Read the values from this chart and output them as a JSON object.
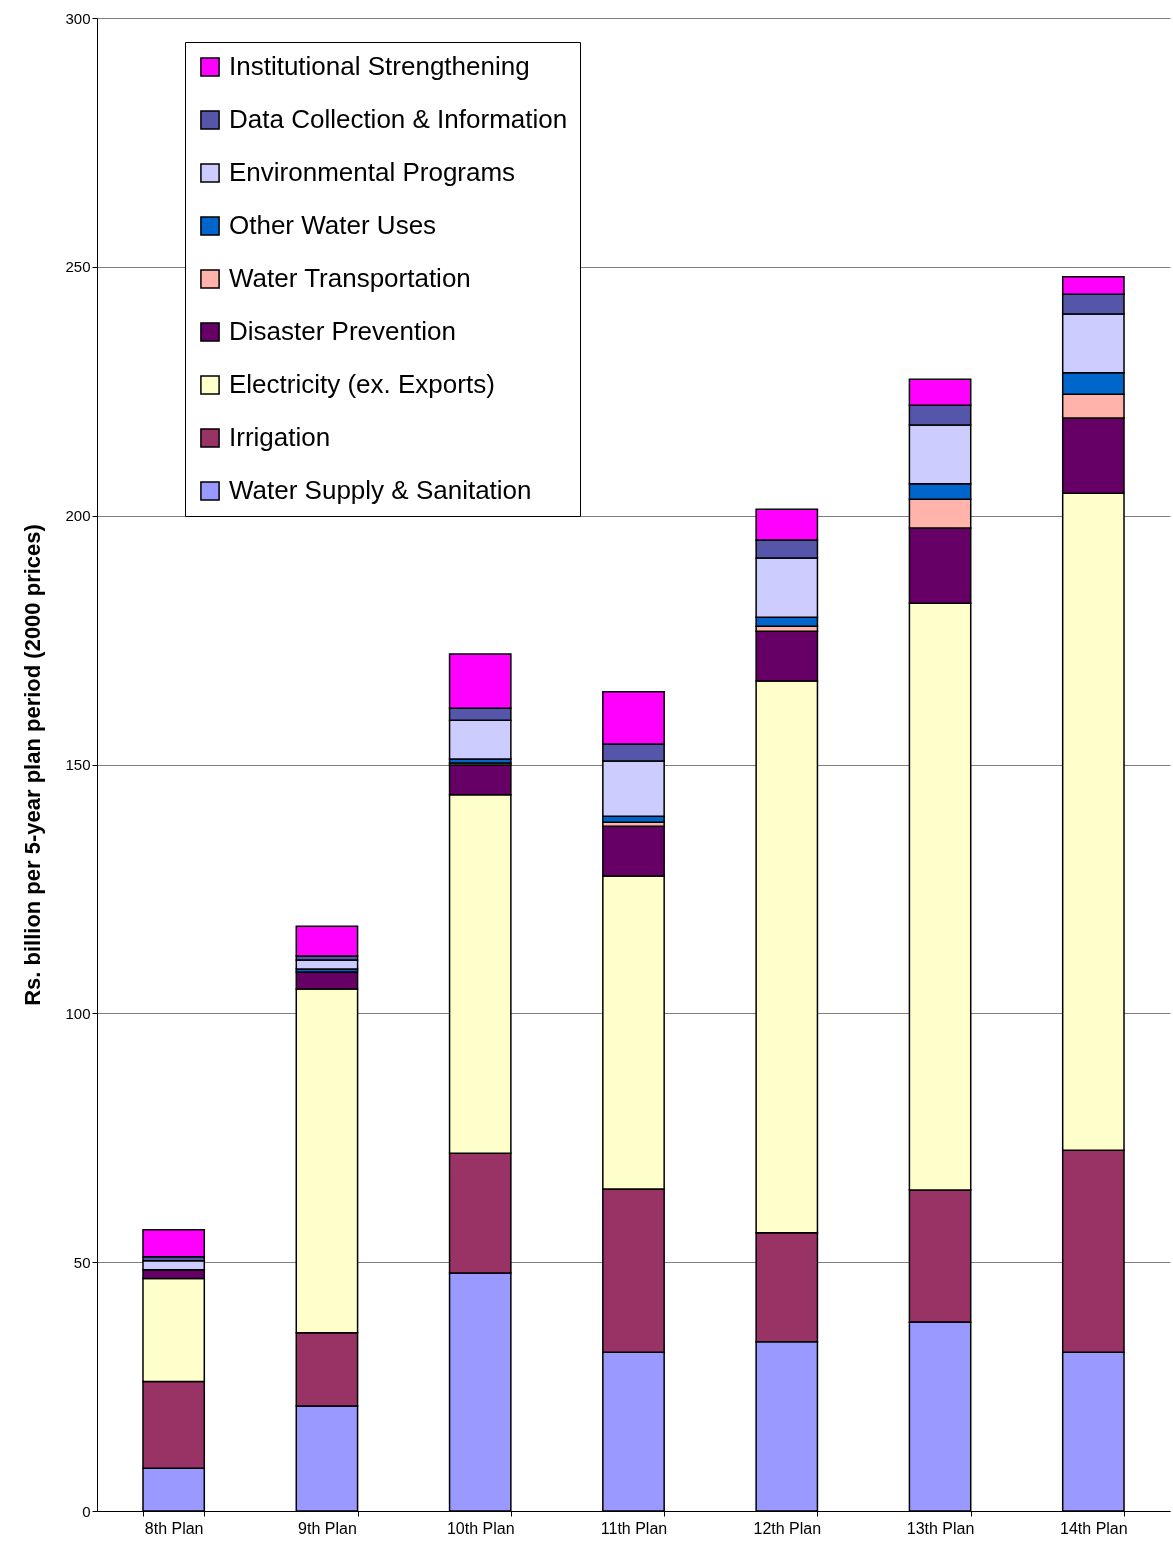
{
  "chart_data": {
    "type": "bar",
    "stacked": true,
    "ylabel": "Rs. billion per 5-year plan period (2000 prices)",
    "categories": [
      "8th Plan",
      "9th Plan",
      "10th Plan",
      "11th Plan",
      "12th Plan",
      "13th Plan",
      "14th Plan"
    ],
    "ylim": [
      0,
      300
    ],
    "yticks": [
      0,
      50,
      100,
      150,
      200,
      250,
      300
    ],
    "grid": "y",
    "legend": "top left",
    "series": [
      {
        "name": "Water Supply & Sanitation",
        "color": "#9999ff",
        "values": [
          8.6,
          21.1,
          47.8,
          31.9,
          34.0,
          38.0,
          31.9
        ]
      },
      {
        "name": "Irrigation",
        "color": "#993366",
        "values": [
          17.4,
          14.7,
          24.1,
          32.8,
          21.9,
          26.5,
          40.6
        ]
      },
      {
        "name": "Electricity (ex. Exports)",
        "color": "#ffffcc",
        "values": [
          20.7,
          69.1,
          72.0,
          62.9,
          110.9,
          117.9,
          132.0
        ]
      },
      {
        "name": "Disaster Prevention",
        "color": "#660066",
        "values": [
          1.8,
          3.4,
          6.0,
          10.0,
          10.0,
          15.1,
          15.1
        ]
      },
      {
        "name": "Water Transportation",
        "color": "#ffb3aa",
        "values": [
          0,
          0,
          0.4,
          0.8,
          1.0,
          5.8,
          4.8
        ]
      },
      {
        "name": "Other Water Uses",
        "color": "#0066cc",
        "values": [
          null,
          0.6,
          0.8,
          1.2,
          1.8,
          3.1,
          4.3
        ]
      },
      {
        "name": "Environmental Programs",
        "color": "#ccccff",
        "values": [
          1.8,
          1.8,
          7.8,
          11.1,
          11.9,
          11.8,
          11.8
        ]
      },
      {
        "name": "Data Collection & Information",
        "color": "#5555aa",
        "values": [
          0.8,
          0.8,
          2.4,
          3.4,
          3.6,
          4.0,
          4.0
        ]
      },
      {
        "name": "Institutional Strengthening",
        "color": "#ff00ff",
        "values": [
          5.4,
          6.0,
          10.9,
          10.5,
          6.2,
          5.2,
          3.5
        ]
      }
    ]
  }
}
